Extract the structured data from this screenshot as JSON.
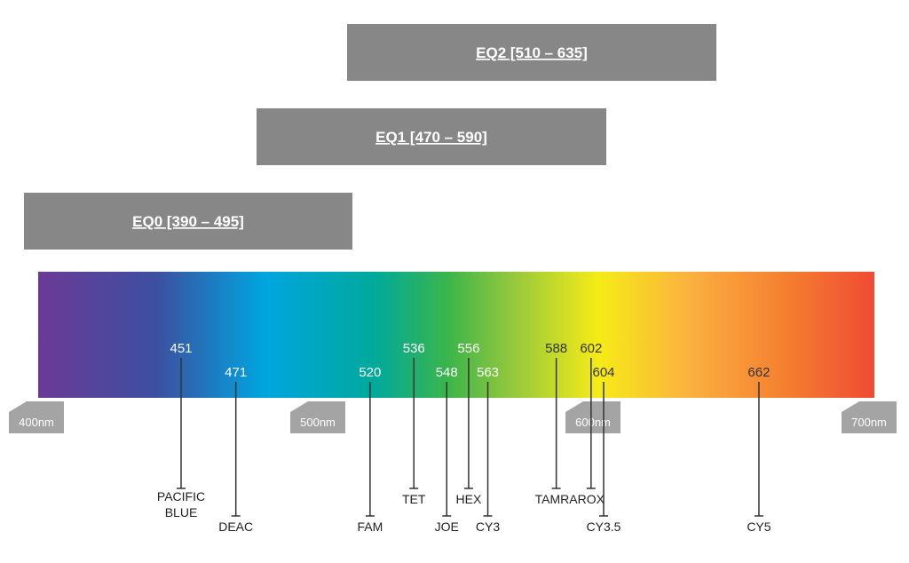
{
  "bands": [
    {
      "label": "EQ2 [510 – 635]"
    },
    {
      "label": "EQ1 [470 – 590]"
    },
    {
      "label": "EQ0 [390 – 495]"
    }
  ],
  "scale": [
    "400nm",
    "500nm",
    "600nm",
    "700nm"
  ],
  "dyes": [
    {
      "wavelength": 451,
      "name": "PACIFIC BLUE"
    },
    {
      "wavelength": 471,
      "name": "DEAC"
    },
    {
      "wavelength": 520,
      "name": "FAM"
    },
    {
      "wavelength": 536,
      "name": "TET"
    },
    {
      "wavelength": 548,
      "name": "JOE"
    },
    {
      "wavelength": 556,
      "name": "HEX"
    },
    {
      "wavelength": 563,
      "name": "CY3"
    },
    {
      "wavelength": 588,
      "name": "TAMRA"
    },
    {
      "wavelength": 602,
      "name": "ROX"
    },
    {
      "wavelength": 604,
      "name": "CY3.5"
    },
    {
      "wavelength": 662,
      "name": "CY5"
    }
  ]
}
